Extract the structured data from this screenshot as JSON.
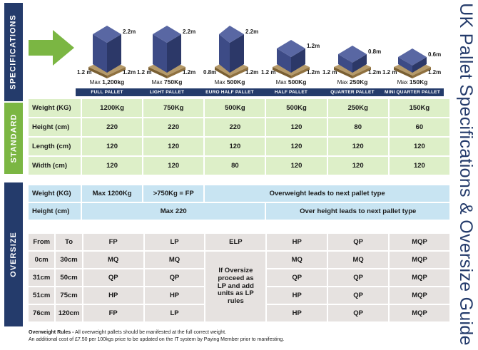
{
  "side_labels": {
    "specifications": "SPECIFICATIONS",
    "standard": "STANDARD",
    "oversize": "OVERSIZE"
  },
  "title": "UK Pallet Specifications & Oversize Guide",
  "pallets": [
    {
      "label": "FULL PALLET",
      "max_prefix": "Max ",
      "max_value": "1,200kg",
      "height": "2.2m",
      "left_dim": "1.2 m",
      "right_dim": "1.2m"
    },
    {
      "label": "LIGHT PALLET",
      "max_prefix": "Max ",
      "max_value": "750Kg",
      "height": "2.2m",
      "left_dim": "1.2 m",
      "right_dim": "1.2m"
    },
    {
      "label": "EURO HALF PALLET",
      "max_prefix": "Max ",
      "max_value": "500Kg",
      "height": "2.2m",
      "left_dim": "0.8m",
      "right_dim": "1.2m"
    },
    {
      "label": "HALF PALLET",
      "max_prefix": "Max ",
      "max_value": "500Kg",
      "height": "1.2m",
      "left_dim": "1.2 m",
      "right_dim": "1.2m"
    },
    {
      "label": "QUARTER PALLET",
      "max_prefix": "Max ",
      "max_value": "250Kg",
      "height": "0.8m",
      "left_dim": "1.2 m",
      "right_dim": "1.2m"
    },
    {
      "label": "MINI QUARTER PALLET",
      "max_prefix": "Max ",
      "max_value": "150Kg",
      "height": "0.6m",
      "left_dim": "1.2 m",
      "right_dim": "1.2m"
    }
  ],
  "standard": {
    "rows": [
      {
        "label": "Weight (KG)",
        "values": [
          "1200Kg",
          "750Kg",
          "500Kg",
          "500Kg",
          "250Kg",
          "150Kg"
        ]
      },
      {
        "label": "Height (cm)",
        "values": [
          "220",
          "220",
          "220",
          "120",
          "80",
          "60"
        ]
      },
      {
        "label": "Length (cm)",
        "values": [
          "120",
          "120",
          "120",
          "120",
          "120",
          "120"
        ]
      },
      {
        "label": "Width (cm)",
        "values": [
          "120",
          "120",
          "80",
          "120",
          "120",
          "120"
        ]
      }
    ]
  },
  "oversize_top": {
    "weight_label": "Weight (KG)",
    "weight_max": "Max 1200Kg",
    "weight_rule": ">750Kg = FP",
    "weight_note": "Overweight leads to next pallet type",
    "height_label": "Height (cm)",
    "height_max": "Max 220",
    "height_note": "Over height leads to next pallet type"
  },
  "oversize_grid": {
    "headers": [
      "From",
      "To",
      "FP",
      "LP",
      "ELP",
      "HP",
      "QP",
      "MQP"
    ],
    "rows": [
      {
        "from": "0cm",
        "to": "30cm",
        "fp": "MQ",
        "lp": "MQ",
        "hp": "MQ",
        "qp": "MQ",
        "mqp": "MQP"
      },
      {
        "from": "31cm",
        "to": "50cm",
        "fp": "QP",
        "lp": "QP",
        "hp": "QP",
        "qp": "QP",
        "mqp": "MQP"
      },
      {
        "from": "51cm",
        "to": "75cm",
        "fp": "HP",
        "lp": "HP",
        "hp": "HP",
        "qp": "QP",
        "mqp": "MQP"
      },
      {
        "from": "76cm",
        "to": "120cm",
        "fp": "FP",
        "lp": "LP",
        "hp": "HP",
        "qp": "QP",
        "mqp": "MQP"
      }
    ],
    "elp_note": "If Oversize proceed as LP and add units as LP rules"
  },
  "footer": {
    "rule_title": "Overweight Rules -",
    "line1": " All overweight pallets should be manifested at the full correct weight.",
    "line2": "An additional cost of £7.50 per 100kgs  price to be  updated on the IT system by Paying Member prior to manifesting."
  },
  "colors": {
    "navy": "#243b6b",
    "green": "#7bb643",
    "box": "#3d4b86",
    "standard_cell": "#ddefc8",
    "oversize_cell": "#c8e4f2",
    "grid_cell": "#e6e2e0"
  }
}
